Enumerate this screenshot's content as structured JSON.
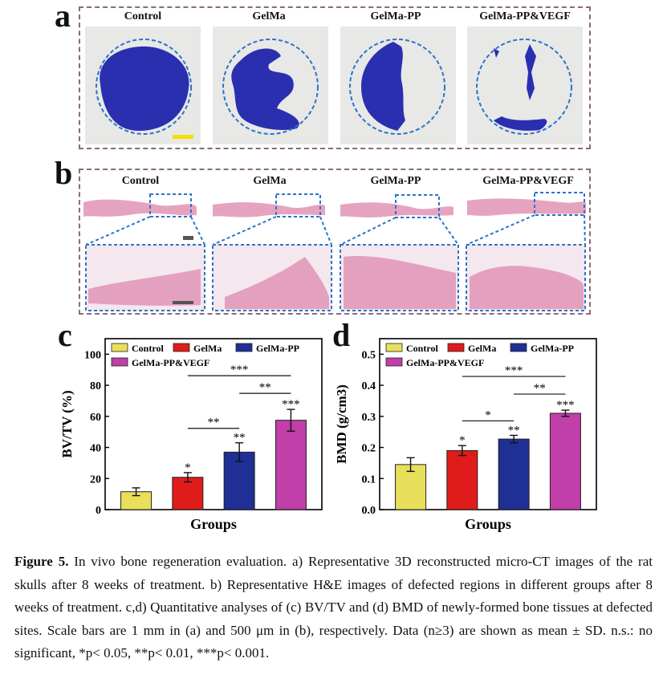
{
  "panels": {
    "a": {
      "letter": "a",
      "labels": [
        "Control",
        "GelMa",
        "GelMa-PP",
        "GelMa-PP&VEGF"
      ]
    },
    "b": {
      "letter": "b",
      "labels": [
        "Control",
        "GelMa",
        "GelMa-PP",
        "GelMa-PP&VEGF"
      ]
    },
    "c": {
      "letter": "c"
    },
    "d": {
      "letter": "d"
    }
  },
  "colors": {
    "control": "#e8e05a",
    "gelma": "#e01b1b",
    "gelma_pp": "#1f2f95",
    "gelma_pp_vegf": "#c03fa8",
    "ct_blue": "#2a2fb0",
    "scale_yellow": "#f2e000"
  },
  "chart_data": [
    {
      "type": "bar",
      "categories": [
        "Control",
        "GelMa",
        "GelMa-PP",
        "GelMa-PP&VEGF"
      ],
      "values": [
        11.5,
        20.8,
        37.0,
        57.5
      ],
      "errors": [
        2.5,
        3.0,
        6.0,
        7.0
      ],
      "significance": [
        "",
        "*",
        "**",
        "***"
      ],
      "brackets": [
        {
          "label": "**",
          "from": 1,
          "to": 2
        },
        {
          "label": "**",
          "from": 2,
          "to": 3
        },
        {
          "label": "***",
          "from": 1,
          "to": 3
        }
      ],
      "ylabel": "BV/TV (%)",
      "xlabel": "Groups",
      "ylim": [
        0,
        110
      ],
      "yticks": [
        "0",
        "20",
        "40",
        "60",
        "80",
        "100"
      ],
      "legend": [
        "Control",
        "GelMa",
        "GelMa-PP",
        "GelMa-PP&VEGF"
      ]
    },
    {
      "type": "bar",
      "categories": [
        "Control",
        "GelMa",
        "GelMa-PP",
        "GelMa-PP&VEGF"
      ],
      "values": [
        0.145,
        0.19,
        0.227,
        0.31
      ],
      "errors": [
        0.022,
        0.016,
        0.012,
        0.01
      ],
      "significance": [
        "",
        "*",
        "**",
        "***"
      ],
      "brackets": [
        {
          "label": "*",
          "from": 1,
          "to": 2
        },
        {
          "label": "**",
          "from": 2,
          "to": 3
        },
        {
          "label": "***",
          "from": 1,
          "to": 3
        }
      ],
      "ylabel": "BMD (g/cm3)",
      "xlabel": "Groups",
      "ylim": [
        0,
        0.55
      ],
      "yticks": [
        "0.0",
        "0.1",
        "0.2",
        "0.3",
        "0.4",
        "0.5"
      ],
      "legend": [
        "Control",
        "GelMa",
        "GelMa-PP",
        "GelMa-PP&VEGF"
      ]
    }
  ],
  "caption": {
    "title": "Figure 5.",
    "text": " In vivo bone regeneration evaluation. a) Representative 3D reconstructed micro-CT images of the rat skulls after 8 weeks of treatment. b) Representative H&E images of defected regions in different groups after 8 weeks of treatment. c,d) Quantitative analyses of (c) BV/TV and (d) BMD of newly-formed bone tissues at defected sites. Scale bars are 1 mm in (a) and 500 μm in (b), respectively. Data (n≥3) are shown as mean ± SD. n.s.: no significant, *p< 0.05, **p< 0.01, ***p< 0.001."
  }
}
